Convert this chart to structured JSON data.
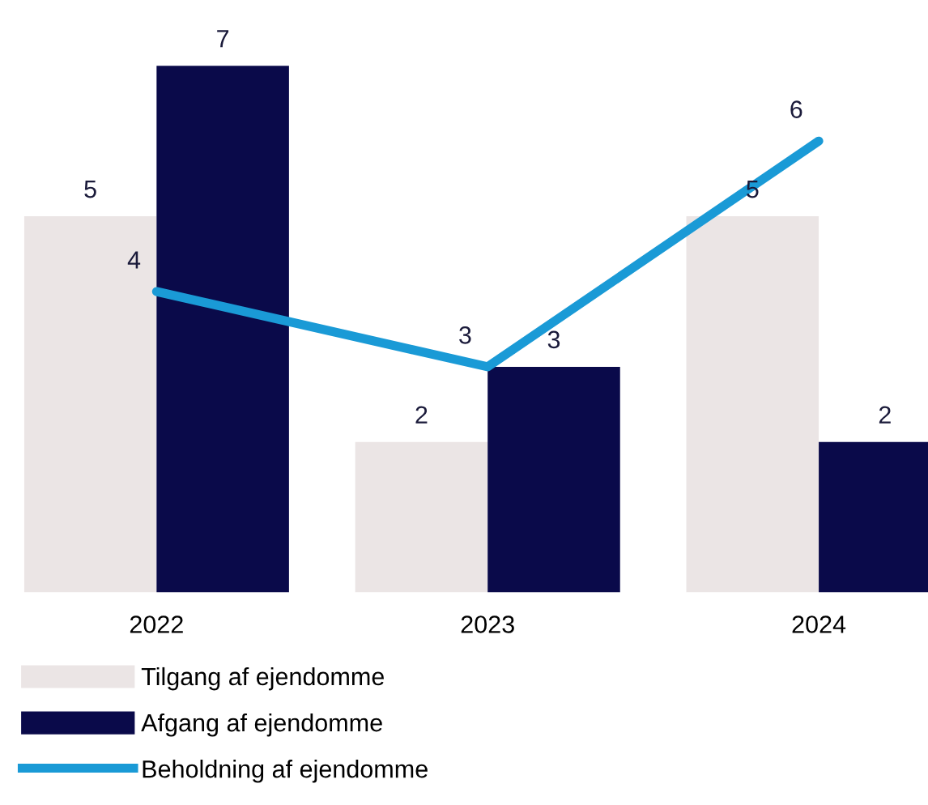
{
  "chart_data": {
    "type": "bar",
    "categories": [
      "2022",
      "2023",
      "2024"
    ],
    "series": [
      {
        "name": "Tilgang af ejendomme",
        "color": "#ebe5e5",
        "values": [
          5,
          2,
          5
        ]
      },
      {
        "name": "Afgang af ejendomme",
        "color": "#0a0a4a",
        "values": [
          7,
          3,
          2
        ]
      },
      {
        "name": "Beholdning af ejendomme",
        "color": "#1a9ad6",
        "type": "line",
        "values": [
          4,
          3,
          6
        ]
      }
    ],
    "data_labels": true,
    "legend": "bottom left",
    "grid": false,
    "marker": "none",
    "line_style": "solid"
  }
}
